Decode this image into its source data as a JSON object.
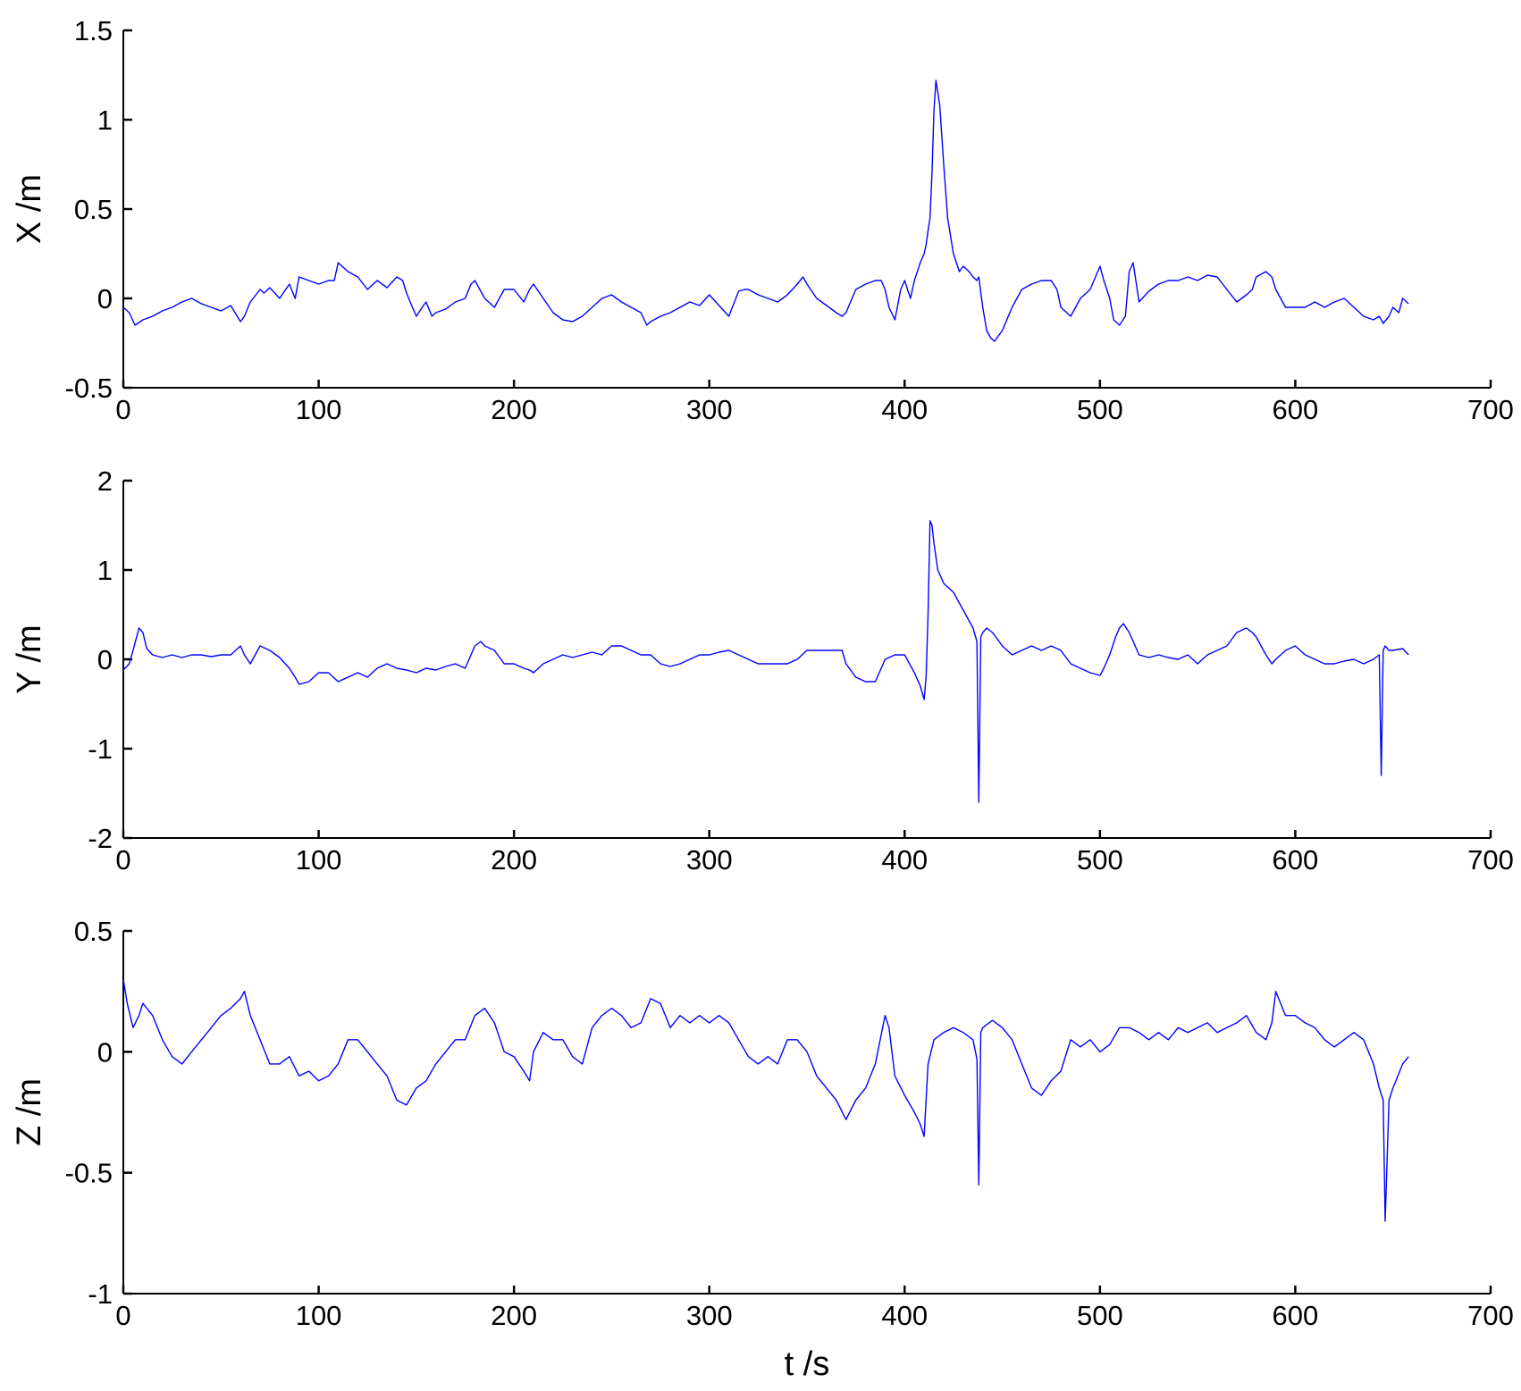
{
  "chart_data": [
    {
      "type": "line",
      "ylabel": "X /m",
      "xlabel": "",
      "xlim": [
        0,
        700
      ],
      "ylim": [
        -0.5,
        1.5
      ],
      "xticks": [
        0,
        100,
        200,
        300,
        400,
        500,
        600,
        700
      ],
      "yticks": [
        -0.5,
        0,
        0.5,
        1,
        1.5
      ],
      "xtick_labels": [
        "0",
        "100",
        "200",
        "300",
        "400",
        "500",
        "600",
        "700"
      ],
      "ytick_labels": [
        "-0.5",
        "0",
        "0.5",
        "1",
        "1.5"
      ],
      "grid": false,
      "color": "#0000ff",
      "series": [
        {
          "x": [
            0,
            3,
            6,
            10,
            15,
            20,
            25,
            30,
            35,
            40,
            45,
            50,
            55,
            60,
            62,
            65,
            70,
            72,
            75,
            80,
            85,
            88,
            90,
            95,
            100,
            105,
            108,
            110,
            112,
            115,
            120,
            125,
            130,
            135,
            140,
            143,
            145,
            148,
            150,
            153,
            155,
            158,
            160,
            165,
            170,
            175,
            178,
            180,
            185,
            190,
            195,
            200,
            205,
            208,
            210,
            215,
            220,
            225,
            230,
            235,
            240,
            245,
            250,
            255,
            260,
            265,
            268,
            270,
            275,
            280,
            285,
            290,
            295,
            300,
            305,
            310,
            315,
            318,
            320,
            325,
            330,
            335,
            340,
            345,
            348,
            350,
            355,
            360,
            365,
            368,
            370,
            375,
            380,
            385,
            388,
            390,
            392,
            395,
            398,
            400,
            403,
            405,
            408,
            410,
            411,
            412,
            413,
            414,
            415,
            416,
            418,
            420,
            422,
            425,
            428,
            430,
            433,
            435,
            437,
            438,
            440,
            442,
            444,
            446,
            450,
            455,
            460,
            465,
            470,
            475,
            478,
            480,
            485,
            490,
            495,
            500,
            502,
            505,
            507,
            510,
            513,
            515,
            517,
            520,
            525,
            530,
            535,
            540,
            545,
            550,
            555,
            560,
            565,
            570,
            575,
            578,
            580,
            585,
            588,
            590,
            595,
            600,
            605,
            610,
            615,
            620,
            625,
            630,
            635,
            640,
            643,
            645,
            648,
            650,
            653,
            655,
            658
          ],
          "y": [
            -0.05,
            -0.08,
            -0.15,
            -0.12,
            -0.1,
            -0.07,
            -0.05,
            -0.02,
            0.0,
            -0.03,
            -0.05,
            -0.07,
            -0.04,
            -0.13,
            -0.1,
            -0.02,
            0.05,
            0.03,
            0.06,
            0.0,
            0.08,
            0.0,
            0.12,
            0.1,
            0.08,
            0.1,
            0.1,
            0.2,
            0.18,
            0.15,
            0.12,
            0.05,
            0.1,
            0.06,
            0.12,
            0.1,
            0.03,
            -0.05,
            -0.1,
            -0.05,
            -0.02,
            -0.1,
            -0.08,
            -0.06,
            -0.02,
            0.0,
            0.08,
            0.1,
            0.0,
            -0.05,
            0.05,
            0.05,
            -0.02,
            0.05,
            0.08,
            0.0,
            -0.08,
            -0.12,
            -0.13,
            -0.1,
            -0.05,
            0.0,
            0.02,
            -0.02,
            -0.05,
            -0.08,
            -0.15,
            -0.13,
            -0.1,
            -0.08,
            -0.05,
            -0.02,
            -0.04,
            0.02,
            -0.04,
            -0.1,
            0.04,
            0.05,
            0.05,
            0.02,
            0.0,
            -0.02,
            0.02,
            0.08,
            0.12,
            0.08,
            0.0,
            -0.04,
            -0.08,
            -0.1,
            -0.08,
            0.05,
            0.08,
            0.1,
            0.1,
            0.05,
            -0.05,
            -0.12,
            0.05,
            0.1,
            0.0,
            0.1,
            0.2,
            0.25,
            0.3,
            0.38,
            0.45,
            0.7,
            1.05,
            1.22,
            1.08,
            0.75,
            0.45,
            0.25,
            0.15,
            0.18,
            0.15,
            0.12,
            0.1,
            0.12,
            -0.05,
            -0.18,
            -0.22,
            -0.24,
            -0.18,
            -0.05,
            0.05,
            0.08,
            0.1,
            0.1,
            0.05,
            -0.05,
            -0.1,
            0.0,
            0.05,
            0.18,
            0.1,
            0.0,
            -0.12,
            -0.15,
            -0.1,
            0.15,
            0.2,
            -0.02,
            0.04,
            0.08,
            0.1,
            0.1,
            0.12,
            0.1,
            0.13,
            0.12,
            0.05,
            -0.02,
            0.02,
            0.05,
            0.12,
            0.15,
            0.12,
            0.05,
            -0.05,
            -0.05,
            -0.05,
            -0.02,
            -0.05,
            -0.02,
            0.0,
            -0.05,
            -0.1,
            -0.12,
            -0.1,
            -0.14,
            -0.1,
            -0.05,
            -0.08,
            0.0,
            -0.03
          ]
        }
      ]
    },
    {
      "type": "line",
      "ylabel": "Y /m",
      "xlabel": "",
      "xlim": [
        0,
        700
      ],
      "ylim": [
        -2,
        2
      ],
      "xticks": [
        0,
        100,
        200,
        300,
        400,
        500,
        600,
        700
      ],
      "yticks": [
        -2,
        -1,
        0,
        1,
        2
      ],
      "xtick_labels": [
        "0",
        "100",
        "200",
        "300",
        "400",
        "500",
        "600",
        "700"
      ],
      "ytick_labels": [
        "-2",
        "-1",
        "0",
        "1",
        "2"
      ],
      "grid": false,
      "color": "#0000ff",
      "series": [
        {
          "x": [
            0,
            3,
            5,
            8,
            10,
            12,
            15,
            20,
            25,
            30,
            35,
            40,
            45,
            50,
            55,
            60,
            62,
            65,
            70,
            75,
            80,
            85,
            88,
            90,
            95,
            100,
            105,
            110,
            115,
            120,
            125,
            130,
            135,
            140,
            145,
            150,
            155,
            160,
            165,
            170,
            175,
            180,
            183,
            185,
            190,
            195,
            200,
            205,
            208,
            210,
            215,
            220,
            225,
            230,
            235,
            240,
            245,
            250,
            255,
            260,
            265,
            270,
            275,
            280,
            285,
            290,
            295,
            300,
            305,
            310,
            315,
            320,
            325,
            330,
            335,
            340,
            345,
            350,
            355,
            360,
            365,
            368,
            370,
            375,
            380,
            385,
            390,
            395,
            400,
            405,
            408,
            410,
            411,
            412,
            413,
            414,
            415,
            417,
            420,
            425,
            430,
            435,
            437,
            438,
            439,
            440,
            442,
            445,
            450,
            455,
            460,
            465,
            470,
            475,
            480,
            485,
            490,
            495,
            500,
            502,
            505,
            508,
            510,
            512,
            515,
            520,
            525,
            530,
            535,
            540,
            545,
            550,
            555,
            560,
            565,
            570,
            575,
            578,
            580,
            585,
            588,
            590,
            595,
            600,
            605,
            610,
            615,
            620,
            625,
            630,
            635,
            640,
            643,
            644,
            645,
            646,
            648,
            650,
            655,
            658
          ],
          "y": [
            -0.12,
            -0.05,
            0.1,
            0.35,
            0.3,
            0.12,
            0.05,
            0.02,
            0.05,
            0.02,
            0.05,
            0.05,
            0.03,
            0.05,
            0.05,
            0.15,
            0.05,
            -0.05,
            0.15,
            0.1,
            0.02,
            -0.1,
            -0.2,
            -0.28,
            -0.25,
            -0.15,
            -0.15,
            -0.25,
            -0.2,
            -0.15,
            -0.2,
            -0.1,
            -0.05,
            -0.1,
            -0.12,
            -0.15,
            -0.1,
            -0.12,
            -0.08,
            -0.05,
            -0.1,
            0.15,
            0.2,
            0.15,
            0.1,
            -0.05,
            -0.05,
            -0.1,
            -0.12,
            -0.15,
            -0.05,
            0.0,
            0.05,
            0.02,
            0.05,
            0.08,
            0.05,
            0.15,
            0.15,
            0.1,
            0.05,
            0.05,
            -0.05,
            -0.08,
            -0.05,
            0.0,
            0.05,
            0.05,
            0.08,
            0.1,
            0.05,
            0.0,
            -0.05,
            -0.05,
            -0.05,
            -0.05,
            0.0,
            0.1,
            0.1,
            0.1,
            0.1,
            0.1,
            -0.05,
            -0.2,
            -0.25,
            -0.25,
            0.0,
            0.05,
            0.05,
            -0.15,
            -0.3,
            -0.45,
            -0.2,
            0.5,
            1.55,
            1.5,
            1.3,
            1.0,
            0.85,
            0.75,
            0.55,
            0.35,
            0.2,
            -1.6,
            0.25,
            0.3,
            0.35,
            0.3,
            0.15,
            0.05,
            0.1,
            0.15,
            0.1,
            0.15,
            0.1,
            -0.05,
            -0.1,
            -0.15,
            -0.18,
            -0.1,
            0.05,
            0.25,
            0.35,
            0.4,
            0.3,
            0.05,
            0.02,
            0.05,
            0.02,
            0.0,
            0.05,
            -0.05,
            0.05,
            0.1,
            0.15,
            0.3,
            0.35,
            0.3,
            0.25,
            0.05,
            -0.05,
            0.0,
            0.1,
            0.15,
            0.05,
            0.0,
            -0.05,
            -0.05,
            -0.02,
            0.0,
            -0.05,
            0.0,
            0.05,
            -1.3,
            0.1,
            0.15,
            0.1,
            0.1,
            0.12,
            0.05
          ]
        }
      ]
    },
    {
      "type": "line",
      "ylabel": "Z /m",
      "xlabel": "t /s",
      "xlim": [
        0,
        700
      ],
      "ylim": [
        -1,
        0.5
      ],
      "xticks": [
        0,
        100,
        200,
        300,
        400,
        500,
        600,
        700
      ],
      "yticks": [
        -1,
        -0.5,
        0,
        0.5
      ],
      "xtick_labels": [
        "0",
        "100",
        "200",
        "300",
        "400",
        "500",
        "600",
        "700"
      ],
      "ytick_labels": [
        "-1",
        "-0.5",
        "0",
        "0.5"
      ],
      "grid": false,
      "color": "#0000ff",
      "series": [
        {
          "x": [
            0,
            2,
            5,
            8,
            10,
            15,
            20,
            25,
            30,
            35,
            40,
            45,
            50,
            55,
            60,
            62,
            65,
            70,
            75,
            80,
            85,
            90,
            95,
            100,
            105,
            110,
            115,
            120,
            125,
            130,
            135,
            140,
            145,
            150,
            155,
            160,
            165,
            170,
            175,
            180,
            185,
            190,
            195,
            200,
            205,
            208,
            210,
            215,
            220,
            225,
            230,
            235,
            240,
            245,
            250,
            255,
            260,
            265,
            270,
            275,
            280,
            285,
            290,
            295,
            300,
            305,
            310,
            315,
            320,
            325,
            330,
            335,
            340,
            345,
            350,
            355,
            360,
            365,
            370,
            375,
            380,
            385,
            390,
            392,
            395,
            400,
            405,
            408,
            410,
            412,
            415,
            420,
            425,
            430,
            435,
            437,
            438,
            439,
            440,
            445,
            450,
            455,
            460,
            465,
            470,
            475,
            480,
            485,
            490,
            495,
            500,
            505,
            510,
            515,
            520,
            525,
            530,
            535,
            540,
            545,
            550,
            555,
            560,
            565,
            570,
            575,
            580,
            585,
            588,
            590,
            595,
            600,
            605,
            610,
            615,
            620,
            625,
            630,
            635,
            640,
            643,
            645,
            646,
            648,
            650,
            655,
            658
          ],
          "y": [
            0.3,
            0.2,
            0.1,
            0.15,
            0.2,
            0.15,
            0.05,
            -0.02,
            -0.05,
            0.0,
            0.05,
            0.1,
            0.15,
            0.18,
            0.22,
            0.25,
            0.15,
            0.05,
            -0.05,
            -0.05,
            -0.02,
            -0.1,
            -0.08,
            -0.12,
            -0.1,
            -0.05,
            0.05,
            0.05,
            0.0,
            -0.05,
            -0.1,
            -0.2,
            -0.22,
            -0.15,
            -0.12,
            -0.05,
            0.0,
            0.05,
            0.05,
            0.15,
            0.18,
            0.12,
            0.0,
            -0.02,
            -0.08,
            -0.12,
            0.0,
            0.08,
            0.05,
            0.05,
            -0.02,
            -0.05,
            0.1,
            0.15,
            0.18,
            0.15,
            0.1,
            0.12,
            0.22,
            0.2,
            0.1,
            0.15,
            0.12,
            0.15,
            0.12,
            0.15,
            0.12,
            0.05,
            -0.02,
            -0.05,
            -0.02,
            -0.05,
            0.05,
            0.05,
            0.0,
            -0.1,
            -0.15,
            -0.2,
            -0.28,
            -0.2,
            -0.15,
            -0.05,
            0.15,
            0.1,
            -0.1,
            -0.18,
            -0.25,
            -0.3,
            -0.35,
            -0.05,
            0.05,
            0.08,
            0.1,
            0.08,
            0.05,
            -0.03,
            -0.55,
            0.08,
            0.1,
            0.13,
            0.1,
            0.05,
            -0.05,
            -0.15,
            -0.18,
            -0.12,
            -0.08,
            0.05,
            0.02,
            0.05,
            0.0,
            0.03,
            0.1,
            0.1,
            0.08,
            0.05,
            0.08,
            0.05,
            0.1,
            0.08,
            0.1,
            0.12,
            0.08,
            0.1,
            0.12,
            0.15,
            0.08,
            0.05,
            0.12,
            0.25,
            0.15,
            0.15,
            0.12,
            0.1,
            0.05,
            0.02,
            0.05,
            0.08,
            0.05,
            -0.05,
            -0.15,
            -0.2,
            -0.7,
            -0.2,
            -0.15,
            -0.05,
            -0.02
          ]
        }
      ]
    }
  ]
}
